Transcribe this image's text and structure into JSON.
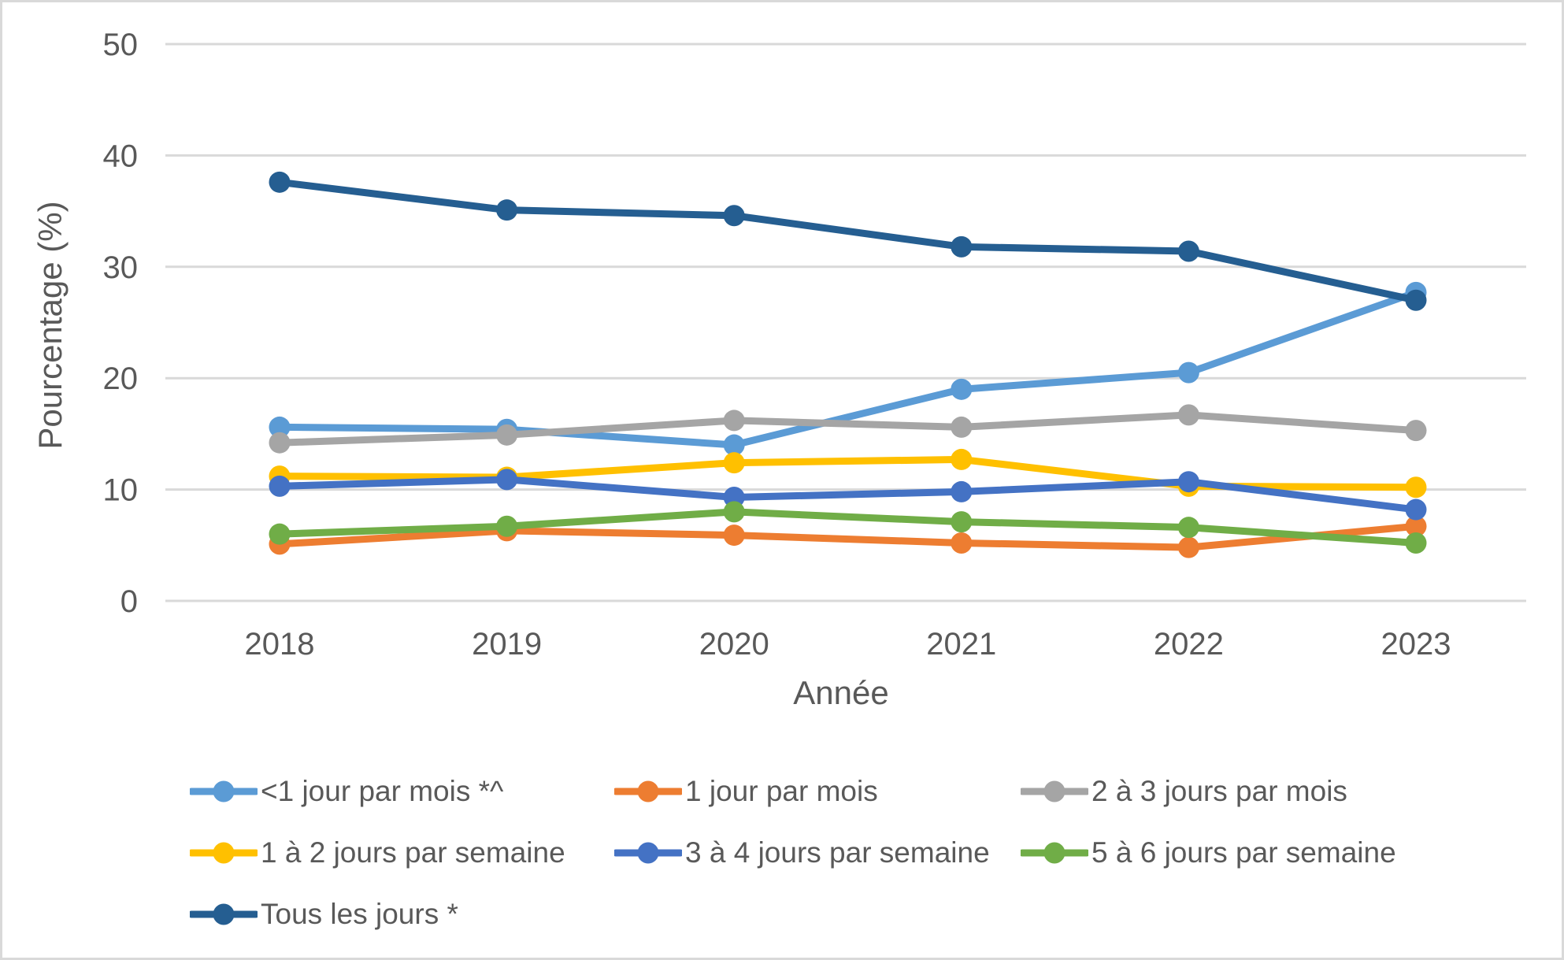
{
  "chart_data": {
    "type": "line",
    "title": "",
    "categories": [
      "2018",
      "2019",
      "2020",
      "2021",
      "2022",
      "2023"
    ],
    "series": [
      {
        "name": "<1 jour par mois *^",
        "color": "#5B9BD5",
        "values": [
          15.6,
          15.4,
          14.0,
          19.0,
          20.5,
          27.7
        ]
      },
      {
        "name": "1 jour par mois",
        "color": "#ED7D31",
        "values": [
          5.1,
          6.3,
          5.9,
          5.2,
          4.8,
          6.7
        ]
      },
      {
        "name": "2 à 3 jours par mois",
        "color": "#A5A5A5",
        "values": [
          14.2,
          14.9,
          16.2,
          15.6,
          16.7,
          15.3
        ]
      },
      {
        "name": "1 à 2 jours par semaine",
        "color": "#FFC000",
        "values": [
          11.2,
          11.1,
          12.4,
          12.7,
          10.3,
          10.2
        ]
      },
      {
        "name": "3 à 4 jours par semaine",
        "color": "#4472C4",
        "values": [
          10.3,
          10.9,
          9.3,
          9.8,
          10.7,
          8.2
        ]
      },
      {
        "name": "5 à 6 jours par semaine",
        "color": "#70AD47",
        "values": [
          6.0,
          6.7,
          8.0,
          7.1,
          6.6,
          5.2
        ]
      },
      {
        "name": "Tous les jours *",
        "color": "#255E91",
        "values": [
          37.6,
          35.1,
          34.6,
          31.8,
          31.4,
          27.0
        ]
      }
    ],
    "xlabel": "Année",
    "ylabel": "Pourcentage (%)",
    "ylim": [
      0,
      50
    ],
    "yticks": [
      0,
      10,
      20,
      30,
      40,
      50
    ],
    "grid": true,
    "legend_position": "bottom",
    "colors": {
      "grid": "#D9D9D9",
      "text": "#595959",
      "background": "#FFFFFF",
      "border": "#D9D9D9"
    }
  }
}
